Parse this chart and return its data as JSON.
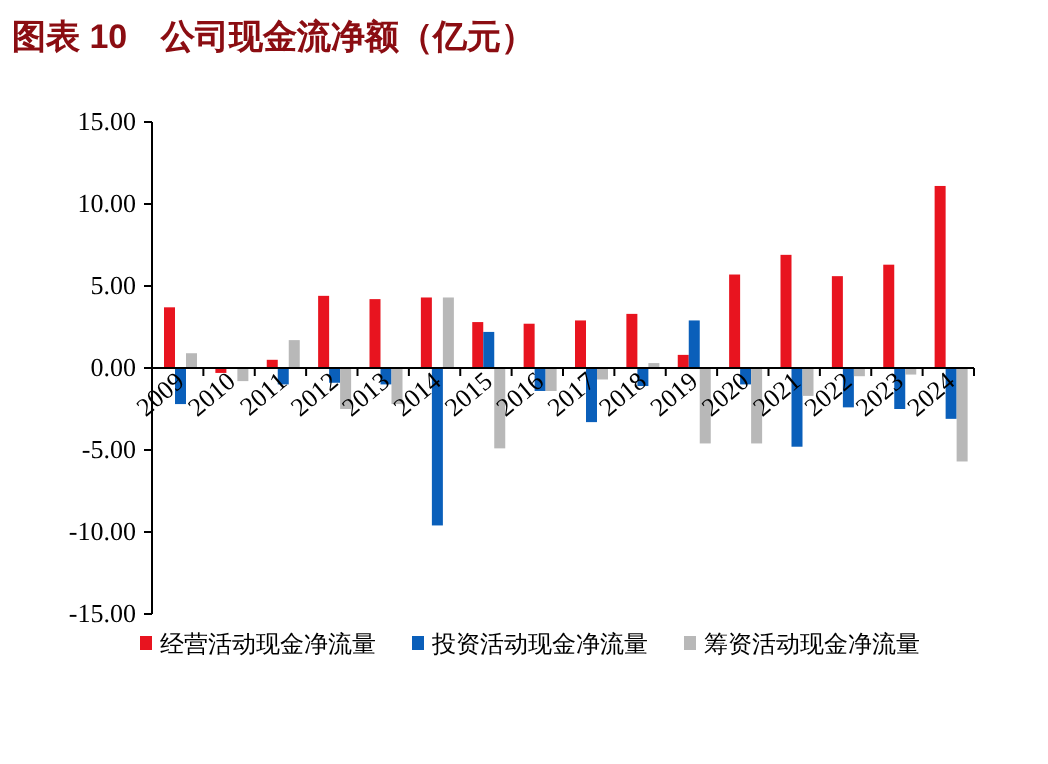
{
  "chart_data": {
    "type": "bar",
    "title": "图表 10　公司现金流净额（亿元）",
    "categories": [
      "2009",
      "2010",
      "2011",
      "2012",
      "2013",
      "2014",
      "2015",
      "2016",
      "2017",
      "2018",
      "2019",
      "2020",
      "2021",
      "2022",
      "2023",
      "2024"
    ],
    "series": [
      {
        "name": "经营活动现金净流量",
        "color": "#e8141f",
        "values": [
          3.7,
          -0.3,
          0.5,
          4.4,
          4.2,
          4.3,
          2.8,
          2.7,
          2.9,
          3.3,
          0.8,
          5.7,
          6.9,
          5.6,
          6.3,
          11.1
        ]
      },
      {
        "name": "投资活动现金净流量",
        "color": "#0a5fba",
        "values": [
          -2.2,
          0,
          -1.0,
          -0.9,
          -1.0,
          -9.6,
          2.2,
          -1.4,
          -3.3,
          -1.1,
          2.9,
          -1.0,
          -4.8,
          -2.4,
          -2.5,
          -3.1
        ]
      },
      {
        "name": "筹资活动现金净流量",
        "color": "#b8b8b8",
        "values": [
          0.9,
          -0.8,
          1.7,
          -2.5,
          -2.2,
          4.3,
          -4.9,
          -1.4,
          -0.7,
          0.3,
          -4.6,
          -4.6,
          -1.7,
          -0.5,
          -0.4,
          -5.7
        ]
      }
    ],
    "ylim": [
      -15,
      15
    ],
    "yticks": [
      {
        "value": -15,
        "label": "-15.00"
      },
      {
        "value": -10,
        "label": "-10.00"
      },
      {
        "value": -5,
        "label": "-5.00"
      },
      {
        "value": 0,
        "label": "0.00"
      },
      {
        "value": 5,
        "label": "5.00"
      },
      {
        "value": 10,
        "label": "10.00"
      },
      {
        "value": 15,
        "label": "15.00"
      }
    ],
    "grid": false,
    "legend": "bottom"
  }
}
